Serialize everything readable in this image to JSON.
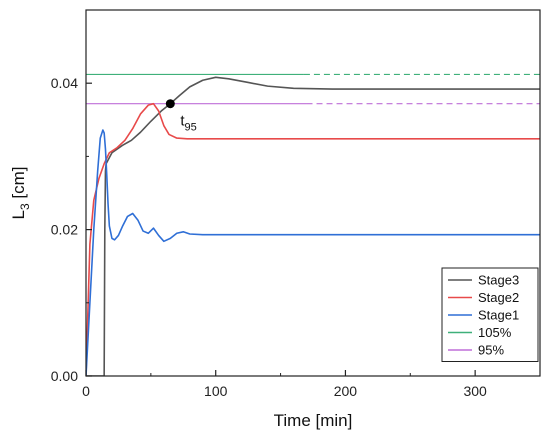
{
  "chart_data": {
    "type": "line",
    "xlabel": "Time [min]",
    "ylabel_main": "L",
    "ylabel_sub": "3",
    "ylabel_unit": " [cm]",
    "xlim": [
      0,
      350
    ],
    "ylim": [
      0,
      0.05
    ],
    "xticks": [
      0,
      100,
      200,
      300
    ],
    "xtick_labels": [
      "0",
      "100",
      "200",
      "300"
    ],
    "yticks": [
      0,
      0.02,
      0.04
    ],
    "ytick_labels": [
      "0.00",
      "0.02",
      "0.04"
    ],
    "grid": false,
    "legend_position": "bottom-right",
    "series": [
      {
        "name": "Stage3",
        "color": "#555555",
        "x": [
          0,
          4,
          8,
          14,
          14.5,
          15,
          15.5,
          20,
          28,
          35,
          42,
          50,
          58,
          65,
          72,
          80,
          90,
          100,
          110,
          125,
          140,
          160,
          190,
          230,
          280,
          350
        ],
        "y": [
          0,
          0,
          0,
          0,
          0.02,
          0.028,
          0.029,
          0.0305,
          0.0315,
          0.0322,
          0.0333,
          0.0348,
          0.0362,
          0.0372,
          0.0383,
          0.0395,
          0.0404,
          0.0408,
          0.0406,
          0.0401,
          0.0396,
          0.0393,
          0.0392,
          0.0392,
          0.0392,
          0.0392
        ]
      },
      {
        "name": "Stage2",
        "color": "#e84a4a",
        "x": [
          0,
          3,
          6,
          10,
          14,
          18,
          24,
          30,
          36,
          42,
          48,
          52,
          56,
          60,
          64,
          70,
          78,
          90,
          110,
          150,
          250,
          350
        ],
        "y": [
          0,
          0.018,
          0.024,
          0.027,
          0.029,
          0.0305,
          0.0312,
          0.0322,
          0.0338,
          0.0358,
          0.037,
          0.0372,
          0.0362,
          0.0342,
          0.033,
          0.0325,
          0.0324,
          0.0324,
          0.0324,
          0.0324,
          0.0324,
          0.0324
        ]
      },
      {
        "name": "Stage1",
        "color": "#2f6fd6",
        "x": [
          0,
          3,
          6,
          9,
          11,
          13,
          14,
          15,
          16,
          17,
          18,
          20,
          22,
          25,
          28,
          32,
          36,
          40,
          44,
          48,
          52,
          56,
          60,
          65,
          70,
          75,
          80,
          90,
          110,
          150,
          250,
          350
        ],
        "y": [
          0,
          0.01,
          0.02,
          0.028,
          0.0325,
          0.0336,
          0.0332,
          0.031,
          0.0275,
          0.0235,
          0.0205,
          0.0188,
          0.0186,
          0.0192,
          0.0204,
          0.0218,
          0.0222,
          0.0213,
          0.0198,
          0.0195,
          0.0202,
          0.0192,
          0.0184,
          0.0188,
          0.0195,
          0.0197,
          0.0194,
          0.0193,
          0.0193,
          0.0193,
          0.0193,
          0.0193
        ]
      },
      {
        "name": "105%",
        "color": "#3fb07a",
        "x": [
          0,
          350
        ],
        "y": [
          0.0412,
          0.0412
        ]
      },
      {
        "name": "95%",
        "color": "#bf6fd8",
        "x": [
          0,
          350
        ],
        "y": [
          0.0372,
          0.0372
        ]
      }
    ],
    "annotation": {
      "label_main": "t",
      "label_sub": "95",
      "x": 65,
      "y": 0.0372
    }
  }
}
